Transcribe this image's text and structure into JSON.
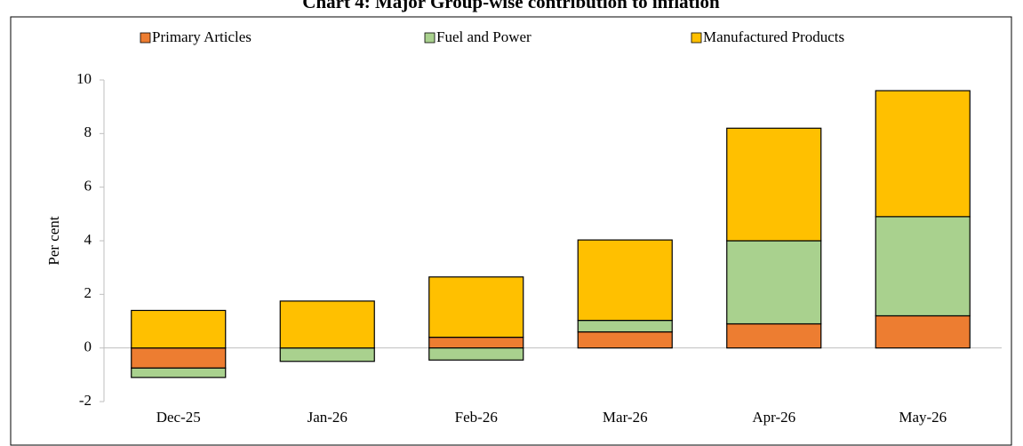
{
  "chart_data": {
    "type": "stacked_bar",
    "title": "Chart 4: Major Group-wise contribution to inflation",
    "y_label": "Per cent",
    "categories": [
      "Dec-25",
      "Jan-26",
      "Feb-26",
      "Mar-26",
      "Apr-26",
      "May-26"
    ],
    "series": [
      {
        "name": "Primary Articles",
        "color": "#ed7d31",
        "values": [
          -0.75,
          0,
          0.4,
          0.6,
          0.9,
          1.2
        ]
      },
      {
        "name": "Fuel and Power",
        "color": "#a9d18e",
        "values": [
          -0.35,
          -0.5,
          -0.45,
          0.43,
          3.1,
          3.7
        ]
      },
      {
        "name": "Manufactured Products",
        "color": "#ffc000",
        "values": [
          1.4,
          1.75,
          2.25,
          3.0,
          4.2,
          4.7
        ]
      }
    ],
    "ylim": [
      -2,
      10
    ],
    "yticks": [
      -2,
      0,
      2,
      4,
      6,
      8,
      10
    ],
    "legend": "top"
  }
}
